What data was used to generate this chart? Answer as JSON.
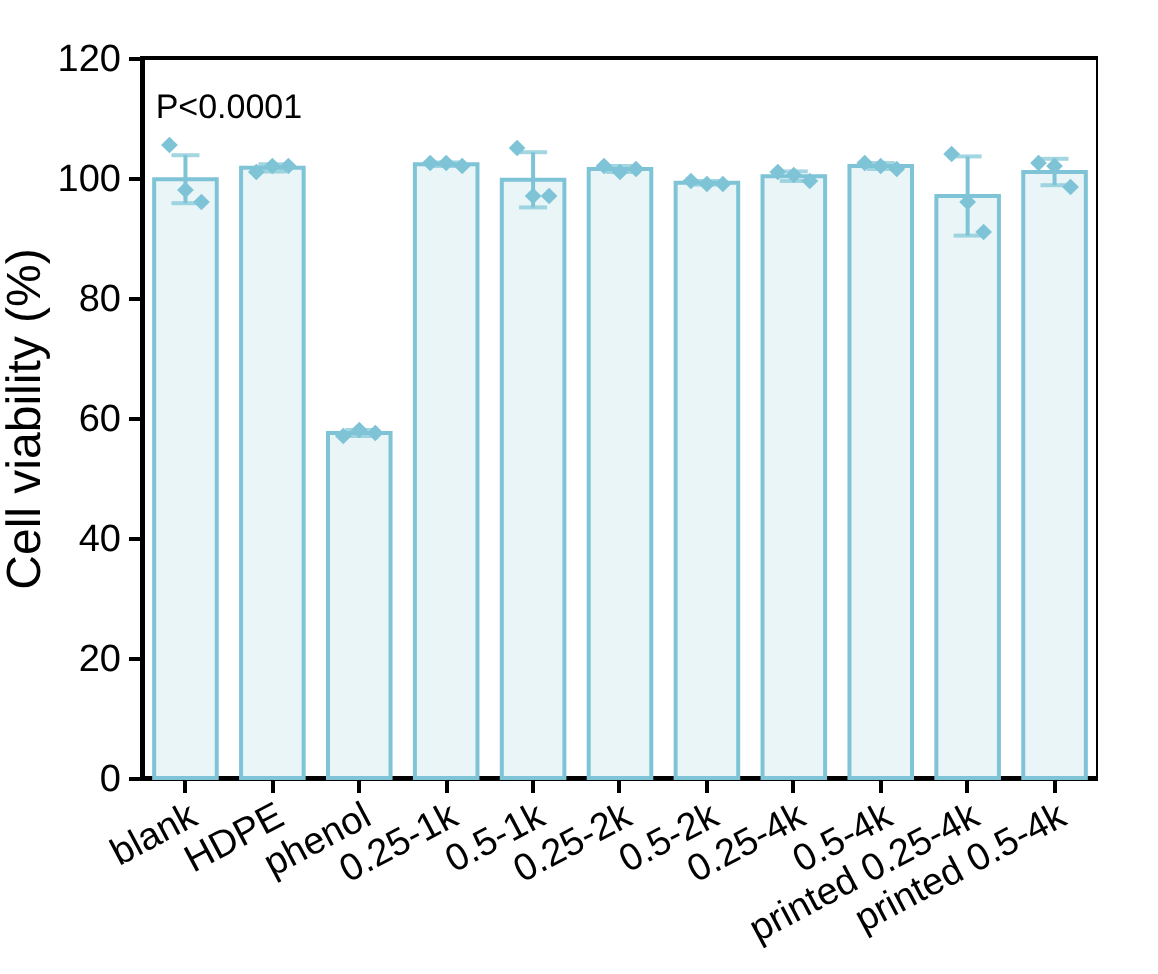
{
  "chart_data": {
    "type": "bar",
    "ylabel": "Cell viability (%)",
    "categories": [
      "blank",
      "HDPE",
      "phenol",
      "0.25-1k",
      "0.5-1k",
      "0.25-2k",
      "0.5-2k",
      "0.25-4k",
      "0.5-4k",
      "printed 0.25-4k",
      "printed 0.5-4k"
    ],
    "series": [
      {
        "color": "#7ec4d6",
        "values": [
          99.8,
          101.7,
          57.5,
          102.3,
          99.7,
          101.5,
          99.2,
          100.3,
          102,
          97,
          101
        ],
        "errors": [
          4,
          0.6,
          0.5,
          0.3,
          4.6,
          0.5,
          0.3,
          0.8,
          0.5,
          6.6,
          2.2
        ]
      },
      {
        "type": "scatter",
        "color": "#7ec4d6",
        "x": [
          "blank",
          "blank",
          "blank",
          "HDPE",
          "HDPE",
          "HDPE",
          "phenol",
          "phenol",
          "phenol",
          "0.25-1k",
          "0.25-1k",
          "0.25-1k",
          "0.5-1k",
          "0.5-1k",
          "0.5-1k",
          "0.25-2k",
          "0.25-2k",
          "0.25-2k",
          "0.5-2k",
          "0.5-2k",
          "0.5-2k",
          "0.25-4k",
          "0.25-4k",
          "0.25-4k",
          "0.5-4k",
          "0.5-4k",
          "0.5-4k",
          "printed 0.25-4k",
          "printed 0.25-4k",
          "printed 0.25-4k",
          "printed 0.5-4k",
          "printed 0.5-4k",
          "printed 0.5-4k"
        ],
        "values": [
          105.5,
          98,
          96,
          101,
          102,
          102,
          57,
          58,
          57.5,
          102.5,
          102.5,
          102,
          105,
          97,
          97,
          102,
          101,
          101.5,
          99.5,
          99,
          99,
          101,
          100.5,
          99.5,
          102.5,
          102,
          101.5,
          104,
          96,
          91,
          102.5,
          102,
          98.5
        ]
      }
    ],
    "marker": "diamond",
    "ylim": [
      0,
      120
    ],
    "yticks": [
      0,
      20,
      40,
      60,
      80,
      100,
      120
    ],
    "grid": false,
    "annotations": [
      "P<0.0001"
    ]
  }
}
